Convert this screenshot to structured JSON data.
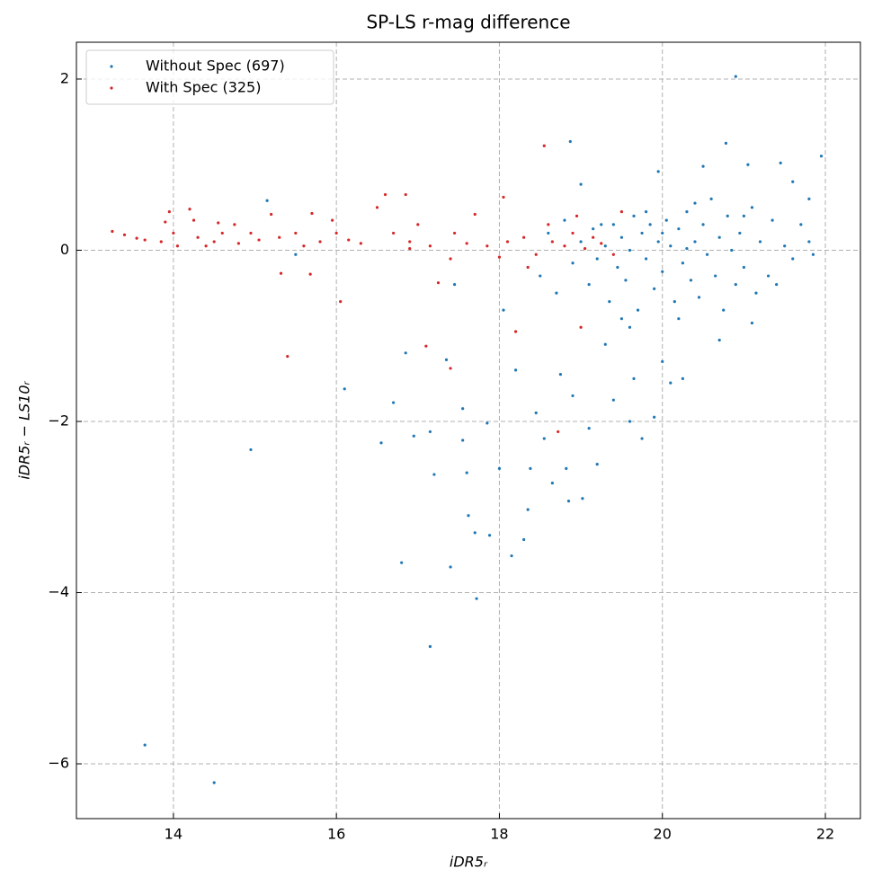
{
  "chart_data": {
    "type": "scatter",
    "title": "SP-LS r-mag difference",
    "xlabel": "iDR5ᵣ",
    "ylabel": "iDR5ᵣ − LS10ᵣ",
    "xlim": [
      12.81,
      22.43
    ],
    "ylim": [
      -6.64,
      2.43
    ],
    "xticks": [
      14,
      16,
      18,
      20,
      22
    ],
    "yticks": [
      {
        "value": -6,
        "label": "−6"
      },
      {
        "value": -4,
        "label": "−4"
      },
      {
        "value": -2,
        "label": "−2"
      },
      0,
      2
    ],
    "grid": true,
    "legend": "upper-left",
    "series": [
      {
        "name": "Without Spec (697)",
        "color": "#1f77b4",
        "x": [
          13.65,
          14.5,
          14.95,
          15.15,
          15.5,
          16.1,
          16.55,
          16.7,
          16.8,
          16.85,
          16.95,
          17.15,
          17.15,
          17.2,
          17.35,
          17.4,
          17.45,
          17.55,
          17.55,
          17.6,
          17.62,
          17.7,
          17.72,
          17.85,
          17.88,
          18.0,
          18.05,
          18.15,
          18.2,
          18.3,
          18.35,
          18.38,
          18.45,
          18.55,
          18.65,
          18.75,
          18.82,
          18.85,
          18.87,
          18.9,
          19.0,
          19.02,
          19.1,
          19.2,
          19.3,
          19.4,
          19.5,
          19.6,
          19.65,
          19.75,
          19.9,
          19.95,
          20.0,
          20.1,
          20.25,
          20.4,
          20.5,
          20.7,
          20.78,
          20.9,
          21.0,
          21.05,
          21.1,
          21.45,
          21.6,
          21.8,
          21.95,
          21.85,
          18.5,
          18.6,
          18.7,
          18.8,
          18.9,
          19.0,
          19.1,
          19.15,
          19.2,
          19.3,
          19.35,
          19.4,
          19.45,
          19.5,
          19.55,
          19.6,
          19.65,
          19.7,
          19.75,
          19.8,
          19.85,
          19.9,
          19.95,
          20.0,
          20.05,
          20.1,
          20.15,
          20.2,
          20.25,
          20.3,
          20.35,
          20.4,
          20.45,
          20.5,
          20.55,
          20.6,
          20.65,
          20.7,
          20.75,
          20.8,
          20.85,
          20.9,
          20.95,
          21.0,
          21.1,
          21.15,
          21.2,
          21.3,
          21.35,
          21.4,
          21.5,
          21.6,
          21.7,
          21.8,
          19.25,
          19.8,
          20.3,
          20.0,
          19.6,
          20.2
        ],
        "values": [
          -5.78,
          -6.22,
          -2.33,
          0.58,
          -0.05,
          -1.62,
          -2.25,
          -1.78,
          -3.65,
          -1.2,
          -2.17,
          -4.63,
          -2.12,
          -2.62,
          -1.28,
          -3.7,
          -0.4,
          -1.85,
          -2.22,
          -2.6,
          -3.1,
          -3.3,
          -4.07,
          -2.02,
          -3.33,
          -2.55,
          -0.7,
          -3.57,
          -1.4,
          -3.38,
          -3.03,
          -2.55,
          -1.9,
          -2.2,
          -2.72,
          -1.45,
          -2.55,
          -2.93,
          1.27,
          -1.7,
          0.77,
          -2.9,
          -2.08,
          -2.5,
          -1.1,
          -1.75,
          -0.8,
          -2.0,
          -1.5,
          -2.2,
          -1.95,
          0.92,
          -1.3,
          -1.55,
          -1.5,
          0.55,
          0.98,
          -1.05,
          1.25,
          2.03,
          0.4,
          1.0,
          -0.85,
          1.02,
          0.8,
          0.6,
          1.1,
          -0.05,
          -0.3,
          0.2,
          -0.5,
          0.35,
          -0.15,
          0.1,
          -0.4,
          0.25,
          -0.1,
          0.05,
          -0.6,
          0.3,
          -0.2,
          0.15,
          -0.35,
          0,
          0.4,
          -0.7,
          0.2,
          -0.1,
          0.3,
          -0.45,
          0.1,
          -0.25,
          0.35,
          0.05,
          -0.6,
          0.25,
          -0.15,
          0.45,
          -0.35,
          0.1,
          -0.55,
          0.3,
          -0.05,
          0.6,
          -0.3,
          0.15,
          -0.7,
          0.4,
          0,
          -0.4,
          0.2,
          -0.2,
          0.5,
          -0.5,
          0.1,
          -0.3,
          0.35,
          -0.4,
          0.05,
          -0.1,
          0.3,
          0.1,
          0.3,
          0.45,
          0.02,
          0.2,
          -0.9,
          -0.8
        ]
      },
      {
        "name": "With Spec (325)",
        "color": "#d62728",
        "x": [
          13.25,
          13.4,
          13.55,
          13.65,
          13.85,
          13.9,
          13.95,
          14.0,
          14.05,
          14.2,
          14.25,
          14.3,
          14.4,
          14.5,
          14.55,
          14.6,
          14.75,
          14.8,
          14.95,
          15.05,
          15.2,
          15.3,
          15.32,
          15.4,
          15.5,
          15.6,
          15.68,
          15.7,
          15.8,
          15.95,
          16.0,
          16.05,
          16.15,
          16.3,
          16.5,
          16.6,
          16.7,
          16.85,
          16.9,
          17.0,
          17.1,
          17.15,
          17.25,
          17.4,
          17.45,
          17.6,
          17.7,
          17.85,
          18.0,
          18.05,
          18.1,
          18.2,
          18.3,
          18.35,
          18.45,
          18.55,
          18.6,
          18.65,
          18.72,
          18.8,
          18.9,
          18.95,
          19.0,
          19.05,
          19.15,
          19.25,
          19.4,
          19.5,
          17.4,
          16.9
        ],
        "values": [
          0.22,
          0.18,
          0.14,
          0.12,
          0.1,
          0.33,
          0.45,
          0.2,
          0.05,
          0.48,
          0.35,
          0.15,
          0.05,
          0.1,
          0.32,
          0.2,
          0.3,
          0.08,
          0.2,
          0.12,
          0.42,
          0.15,
          -0.27,
          -1.24,
          0.2,
          0.05,
          -0.28,
          0.43,
          0.1,
          0.35,
          0.2,
          -0.6,
          0.12,
          0.08,
          0.5,
          0.65,
          0.2,
          0.65,
          0.1,
          0.3,
          -1.12,
          0.05,
          -0.38,
          -1.38,
          0.2,
          0.08,
          0.42,
          0.05,
          -0.08,
          0.62,
          0.1,
          -0.95,
          0.15,
          -0.2,
          -0.05,
          1.22,
          0.3,
          0.1,
          -2.12,
          0.05,
          0.2,
          0.4,
          -0.9,
          0.02,
          0.15,
          0.08,
          -0.05,
          0.45,
          -0.1,
          0.02
        ]
      }
    ]
  }
}
